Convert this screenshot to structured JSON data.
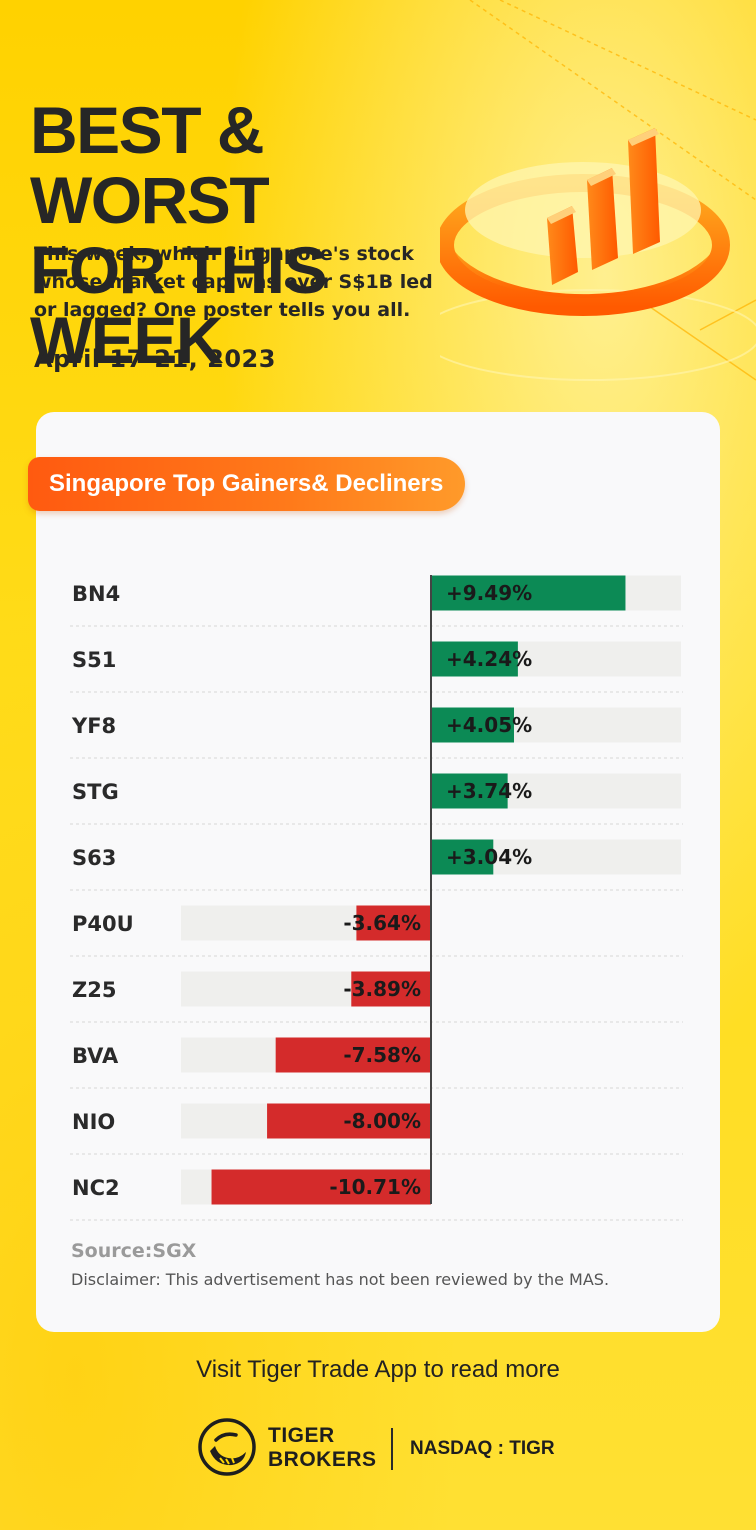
{
  "header": {
    "title_line1": "BEST & WORST",
    "title_line2": "FOR THIS WEEK",
    "subtitle": "This week, which Singapore's stock whose market cap was over S$1B led or lagged? One poster tells you all.",
    "date": "April 17-21, 2023"
  },
  "card": {
    "section_title": "Singapore Top Gainers& Decliners",
    "source": "Source:SGX",
    "disclaimer": "Disclaimer: This advertisement has not been reviewed by the MAS."
  },
  "chart_data": {
    "type": "bar",
    "orientation": "horizontal-diverging",
    "categories": [
      "BN4",
      "S51",
      "YF8",
      "STG",
      "S63",
      "P40U",
      "Z25",
      "BVA",
      "NIO",
      "NC2"
    ],
    "values": [
      9.49,
      4.24,
      4.05,
      3.74,
      3.04,
      -3.64,
      -3.89,
      -7.58,
      -8.0,
      -10.71
    ],
    "labels": [
      "+9.49%",
      "+4.24%",
      "+4.05%",
      "+3.74%",
      "+3.04%",
      "-3.64%",
      "-3.89%",
      "-7.58%",
      "-8.00%",
      "-10.71%"
    ],
    "title": "Singapore Top Gainers& Decliners",
    "xlabel": "",
    "ylabel": "",
    "colors": {
      "positive": "#0c8a55",
      "negative": "#d42b2b",
      "track": "#efefed",
      "axis": "#444444"
    }
  },
  "footer": {
    "cta": "Visit Tiger Trade App to read more",
    "brand_line1": "TIGER",
    "brand_line2": "BROKERS",
    "ticker": "NASDAQ : TIGR",
    "logo_icon": "tiger-logo-icon"
  },
  "colors": {
    "background": "#ffd600",
    "accent_orange": "#ff6a13"
  }
}
